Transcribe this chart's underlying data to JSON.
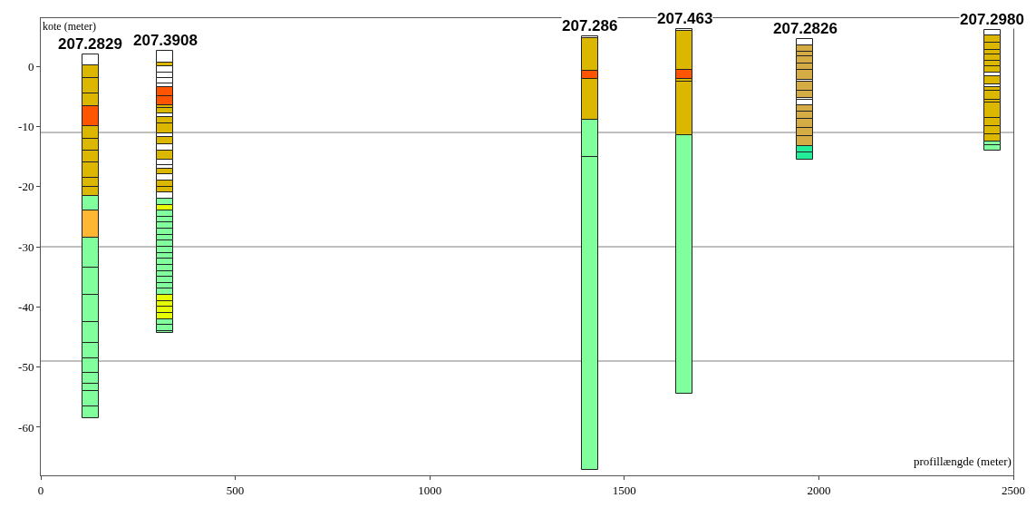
{
  "chart_data": {
    "type": "bar",
    "xlabel": "profillængde (meter)",
    "ylabel": "kote (meter)",
    "xlim": [
      0,
      2500
    ],
    "xticks": [
      0,
      500,
      1000,
      1500,
      2000,
      2500
    ],
    "ylim": [
      -68,
      8
    ],
    "yticks": [
      0,
      -10,
      -20,
      -30,
      -40,
      -50,
      -60
    ],
    "grid": false,
    "x": [
      128,
      320,
      1411,
      1655,
      1965,
      2446
    ],
    "ref_lines": [
      {
        "axis": "y",
        "value": -11,
        "color": "#808080"
      },
      {
        "axis": "y",
        "value": -30,
        "color": "#808080"
      },
      {
        "axis": "y",
        "value": -49,
        "color": "#808080"
      }
    ],
    "annotations": [
      {
        "text": "207.2829",
        "x": 128,
        "y": 2.0
      },
      {
        "text": "207.3908",
        "x": 320,
        "y": 2.5
      },
      {
        "text": "207.286",
        "x": 1411,
        "y": 5.0
      },
      {
        "text": "207.463",
        "x": 1655,
        "y": 6.2
      },
      {
        "text": "207.2826",
        "x": 1965,
        "y": 4.5
      },
      {
        "text": "207.2980",
        "x": 2446,
        "y": 6.0
      }
    ],
    "series": [
      {
        "base": [
          0.2,
          0.6,
          4.7,
          5.9,
          3.5,
          5.2
        ],
        "values": [
          1.8,
          1.9,
          0.3,
          0.3,
          1,
          0.8
        ],
        "colors": [
          "#ffffff",
          "#ffffff",
          "#ffffff",
          "#ffffff",
          "#ffffff",
          "#ffffff"
        ]
      },
      {
        "base": [
          -2,
          0,
          -0.7,
          -0.6,
          2.4,
          4
        ],
        "values": [
          2.2,
          0.6,
          5.4,
          6.5,
          1.1,
          1.2
        ],
        "colors": [
          "#dbb700",
          "#dbb700",
          "#dbb700",
          "#dbb700",
          "#d4ab45",
          "#dbb700"
        ]
      },
      {
        "base": [
          -4.5,
          -1,
          -2.1,
          -2.1,
          1.6,
          2.7
        ],
        "values": [
          2.5,
          1,
          1.4,
          1.5,
          0.8,
          1.3
        ],
        "colors": [
          "#dbb700",
          "#ffffff",
          "#ff5500",
          "#ff5500",
          "#d4ab45",
          "#dbb700"
        ]
      },
      {
        "base": [
          -6.7,
          -1.9,
          -8.9,
          -2.5,
          0.5,
          2
        ],
        "values": [
          2.2,
          0.9,
          6.8,
          0.4,
          1.1,
          0.7
        ],
        "colors": [
          "#dbb700",
          "#ffffff",
          "#dbb700",
          "#dbb700",
          "#d4ab45",
          "#dbb700"
        ]
      },
      {
        "base": [
          -10,
          -2.9,
          -15,
          -11.4,
          -0.6,
          0.9
        ],
        "values": [
          3.3,
          1,
          6.1,
          8.9,
          1.1,
          1.1
        ],
        "colors": [
          "#ff5500",
          "#ffffff",
          "#80ff9c",
          "#dbb700",
          "#d4ab45",
          "#dbb700"
        ]
      },
      {
        "base": [
          -12,
          -3.5,
          -67.1,
          -54.4,
          -2.2,
          0
        ],
        "values": [
          2,
          0.6,
          52.1,
          43,
          1.6,
          0.9
        ],
        "colors": [
          "#dbb700",
          "#ffffff",
          "#80ff9c",
          "#80ff9c",
          "#d4ab45",
          "#dbb700"
        ]
      },
      {
        "base": [
          -14,
          -5,
          null,
          null,
          -2.5,
          -1.1
        ],
        "values": [
          2,
          1.5,
          null,
          null,
          0.3,
          1.1
        ],
        "colors": [
          "#dbb700",
          "#ff5500",
          null,
          null,
          "#ffffff",
          "#dbb700"
        ]
      },
      {
        "base": [
          -16,
          -6.5,
          null,
          null,
          -4,
          -1.7
        ],
        "values": [
          2,
          1.5,
          null,
          null,
          1.5,
          0.6
        ],
        "colors": [
          "#dbb700",
          "#ff5500",
          null,
          null,
          "#d4ab45",
          "#ffffff"
        ]
      },
      {
        "base": [
          -18.5,
          -6.9,
          null,
          null,
          -5.2,
          -3
        ],
        "values": [
          2.5,
          0.4,
          null,
          null,
          1.2,
          1.3
        ],
        "colors": [
          "#dbb700",
          "#dbb700",
          null,
          null,
          "#d4ab45",
          "#dbb700"
        ]
      },
      {
        "base": [
          -20,
          -7.9,
          null,
          null,
          -5.6,
          -3.4
        ],
        "values": [
          1.5,
          1,
          null,
          null,
          0.4,
          0.4
        ],
        "colors": [
          "#dbb700",
          "#dbb700",
          null,
          null,
          "#ffffff",
          "#ffffff"
        ]
      },
      {
        "base": [
          -21.5,
          -8.4,
          null,
          null,
          -6.5,
          -4
        ],
        "values": [
          1.5,
          0.5,
          null,
          null,
          0.9,
          0.6
        ],
        "colors": [
          "#dbb700",
          "#ffffff",
          null,
          null,
          "#ffffff",
          "#dbb700"
        ]
      },
      {
        "base": [
          -24,
          -9.5,
          null,
          null,
          -7.5,
          -5.6
        ],
        "values": [
          2.5,
          1.1,
          null,
          null,
          1,
          1.6
        ],
        "colors": [
          "#80ff9c",
          "#dbb700",
          null,
          null,
          "#d4ab45",
          "#dbb700"
        ]
      },
      {
        "base": [
          -28.5,
          -11.1,
          null,
          null,
          -8.7,
          -6
        ],
        "values": [
          4.5,
          1.6,
          null,
          null,
          1.2,
          0.4
        ],
        "colors": [
          "#ffb733",
          "#dbb700",
          null,
          null,
          "#d4ab45",
          "#dbb700"
        ]
      },
      {
        "base": [
          -33.5,
          -11.8,
          null,
          null,
          -10.3,
          -8.6
        ],
        "values": [
          5,
          0.7,
          null,
          null,
          1.6,
          2.6
        ],
        "colors": [
          "#80ff9c",
          "#ffffff",
          null,
          null,
          "#d4ab45",
          "#dbb700"
        ]
      },
      {
        "base": [
          -38,
          -13,
          null,
          null,
          -11.6,
          -10
        ],
        "values": [
          4.5,
          1.2,
          null,
          null,
          1.3,
          1.4
        ],
        "colors": [
          "#80ff9c",
          "#dbb700",
          null,
          null,
          "#d4ab45",
          "#dbb700"
        ]
      },
      {
        "base": [
          -42.5,
          -14,
          null,
          null,
          -13.3,
          -11.3
        ],
        "values": [
          4.5,
          1,
          null,
          null,
          1.7,
          1.3
        ],
        "colors": [
          "#80ff9c",
          "#ffffff",
          null,
          null,
          "#d4ab45",
          "#dbb700"
        ]
      },
      {
        "base": [
          -46,
          -15.5,
          null,
          null,
          -14.3,
          -12.5
        ],
        "values": [
          3.5,
          1.5,
          null,
          null,
          1,
          1.2
        ],
        "colors": [
          "#80ff9c",
          "#dbb700",
          null,
          null,
          "#22ee99",
          "#dbb700"
        ]
      },
      {
        "base": [
          -48.5,
          -16.4,
          null,
          null,
          -15.5,
          -13.1
        ],
        "values": [
          2.5,
          0.9,
          null,
          null,
          1.2,
          0.6
        ],
        "colors": [
          "#80ff9c",
          "#ffffff",
          null,
          null,
          "#22ee99",
          "#80ff9c"
        ]
      },
      {
        "base": [
          -51,
          -17,
          null,
          null,
          null,
          -14
        ],
        "values": [
          2.5,
          0.6,
          null,
          null,
          null,
          0.9
        ],
        "colors": [
          "#80ff9c",
          "#ffffff",
          null,
          null,
          null,
          "#80ff9c"
        ]
      },
      {
        "base": [
          -52.7,
          -18,
          null,
          null,
          null,
          null
        ],
        "values": [
          1.7,
          1,
          null,
          null,
          null,
          null
        ],
        "colors": [
          "#80ff9c",
          "#dbb700",
          null,
          null,
          null,
          null
        ]
      },
      {
        "base": [
          -54,
          -19,
          null,
          null,
          null,
          null
        ],
        "values": [
          1.3,
          1,
          null,
          null,
          null,
          null
        ],
        "colors": [
          "#80ff9c",
          "#ffffff",
          null,
          null,
          null,
          null
        ]
      },
      {
        "base": [
          -56.5,
          -20,
          null,
          null,
          null,
          null
        ],
        "values": [
          2.5,
          1,
          null,
          null,
          null,
          null
        ],
        "colors": [
          "#80ff9c",
          "#dbb700",
          null,
          null,
          null,
          null
        ]
      },
      {
        "base": [
          -58.5,
          -21,
          null,
          null,
          null,
          null
        ],
        "values": [
          2,
          1,
          null,
          null,
          null,
          null
        ],
        "colors": [
          "#80ff9c",
          "#dbb700",
          null,
          null,
          null,
          null
        ]
      },
      {
        "base": [
          null,
          -22,
          null,
          null,
          null,
          null
        ],
        "values": [
          null,
          1,
          null,
          null,
          null,
          null
        ],
        "colors": [
          null,
          "#ffffff",
          null,
          null,
          null,
          null
        ]
      },
      {
        "base": [
          null,
          -23,
          null,
          null,
          null,
          null
        ],
        "values": [
          null,
          1,
          null,
          null,
          null,
          null
        ],
        "colors": [
          null,
          "#80ff9c",
          null,
          null,
          null,
          null
        ]
      },
      {
        "base": [
          null,
          -24,
          null,
          null,
          null,
          null
        ],
        "values": [
          null,
          1,
          null,
          null,
          null,
          null
        ],
        "colors": [
          null,
          "#e6ff00",
          null,
          null,
          null,
          null
        ]
      },
      {
        "base": [
          null,
          -25,
          null,
          null,
          null,
          null
        ],
        "values": [
          null,
          1,
          null,
          null,
          null,
          null
        ],
        "colors": [
          null,
          "#80ff9c",
          null,
          null,
          null,
          null
        ]
      },
      {
        "base": [
          null,
          -26,
          null,
          null,
          null,
          null
        ],
        "values": [
          null,
          1,
          null,
          null,
          null,
          null
        ],
        "colors": [
          null,
          "#80ff9c",
          null,
          null,
          null,
          null
        ]
      },
      {
        "base": [
          null,
          -27,
          null,
          null,
          null,
          null
        ],
        "values": [
          null,
          1,
          null,
          null,
          null,
          null
        ],
        "colors": [
          null,
          "#80ff9c",
          null,
          null,
          null,
          null
        ]
      },
      {
        "base": [
          null,
          -28,
          null,
          null,
          null,
          null
        ],
        "values": [
          null,
          1,
          null,
          null,
          null,
          null
        ],
        "colors": [
          null,
          "#80ff9c",
          null,
          null,
          null,
          null
        ]
      },
      {
        "base": [
          null,
          -29,
          null,
          null,
          null,
          null
        ],
        "values": [
          null,
          1,
          null,
          null,
          null,
          null
        ],
        "colors": [
          null,
          "#80ff9c",
          null,
          null,
          null,
          null
        ]
      },
      {
        "base": [
          null,
          -30,
          null,
          null,
          null,
          null
        ],
        "values": [
          null,
          1,
          null,
          null,
          null,
          null
        ],
        "colors": [
          null,
          "#80ff9c",
          null,
          null,
          null,
          null
        ]
      },
      {
        "base": [
          null,
          -31,
          null,
          null,
          null,
          null
        ],
        "values": [
          null,
          1,
          null,
          null,
          null,
          null
        ],
        "colors": [
          null,
          "#80ff9c",
          null,
          null,
          null,
          null
        ]
      },
      {
        "base": [
          null,
          -32,
          null,
          null,
          null,
          null
        ],
        "values": [
          null,
          1,
          null,
          null,
          null,
          null
        ],
        "colors": [
          null,
          "#80ff9c",
          null,
          null,
          null,
          null
        ]
      },
      {
        "base": [
          null,
          -33,
          null,
          null,
          null,
          null
        ],
        "values": [
          null,
          1,
          null,
          null,
          null,
          null
        ],
        "colors": [
          null,
          "#80ff9c",
          null,
          null,
          null,
          null
        ]
      },
      {
        "base": [
          null,
          -34,
          null,
          null,
          null,
          null
        ],
        "values": [
          null,
          1,
          null,
          null,
          null,
          null
        ],
        "colors": [
          null,
          "#80ff9c",
          null,
          null,
          null,
          null
        ]
      },
      {
        "base": [
          null,
          -35,
          null,
          null,
          null,
          null
        ],
        "values": [
          null,
          1,
          null,
          null,
          null,
          null
        ],
        "colors": [
          null,
          "#80ff9c",
          null,
          null,
          null,
          null
        ]
      },
      {
        "base": [
          null,
          -36,
          null,
          null,
          null,
          null
        ],
        "values": [
          null,
          1,
          null,
          null,
          null,
          null
        ],
        "colors": [
          null,
          "#80ff9c",
          null,
          null,
          null,
          null
        ]
      },
      {
        "base": [
          null,
          -37,
          null,
          null,
          null,
          null
        ],
        "values": [
          null,
          1,
          null,
          null,
          null,
          null
        ],
        "colors": [
          null,
          "#80ff9c",
          null,
          null,
          null,
          null
        ]
      },
      {
        "base": [
          null,
          -38,
          null,
          null,
          null,
          null
        ],
        "values": [
          null,
          1,
          null,
          null,
          null,
          null
        ],
        "colors": [
          null,
          "#80ff9c",
          null,
          null,
          null,
          null
        ]
      },
      {
        "base": [
          null,
          -39,
          null,
          null,
          null,
          null
        ],
        "values": [
          null,
          1,
          null,
          null,
          null,
          null
        ],
        "colors": [
          null,
          "#e6ff00",
          null,
          null,
          null,
          null
        ]
      },
      {
        "base": [
          null,
          -40,
          null,
          null,
          null,
          null
        ],
        "values": [
          null,
          1,
          null,
          null,
          null,
          null
        ],
        "colors": [
          null,
          "#e6ff00",
          null,
          null,
          null,
          null
        ]
      },
      {
        "base": [
          null,
          -41,
          null,
          null,
          null,
          null
        ],
        "values": [
          null,
          1,
          null,
          null,
          null,
          null
        ],
        "colors": [
          null,
          "#e6ff00",
          null,
          null,
          null,
          null
        ]
      },
      {
        "base": [
          null,
          -42,
          null,
          null,
          null,
          null
        ],
        "values": [
          null,
          1,
          null,
          null,
          null,
          null
        ],
        "colors": [
          null,
          "#e6ff00",
          null,
          null,
          null,
          null
        ]
      },
      {
        "base": [
          null,
          -43,
          null,
          null,
          null,
          null
        ],
        "values": [
          null,
          1,
          null,
          null,
          null,
          null
        ],
        "colors": [
          null,
          "#80ff9c",
          null,
          null,
          null,
          null
        ]
      },
      {
        "base": [
          null,
          -44,
          null,
          null,
          null,
          null
        ],
        "values": [
          null,
          1,
          null,
          null,
          null,
          null
        ],
        "colors": [
          null,
          "#80ff9c",
          null,
          null,
          null,
          null
        ]
      },
      {
        "base": [
          null,
          -44.4,
          null,
          null,
          null,
          null
        ],
        "values": [
          null,
          0.4,
          null,
          null,
          null,
          null
        ],
        "colors": [
          null,
          "#80ff9c",
          null,
          null,
          null,
          null
        ]
      }
    ]
  }
}
